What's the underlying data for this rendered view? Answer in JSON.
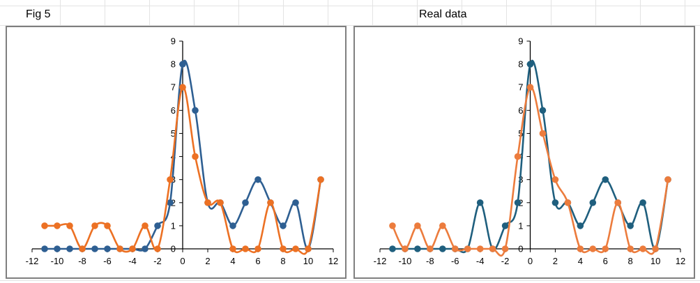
{
  "sheet": {
    "label_left": "Fig 5",
    "label_right": "Real data"
  },
  "chart_data": [
    {
      "type": "line",
      "title": "",
      "xlabel": "",
      "ylabel": "",
      "xlim": [
        -12,
        12
      ],
      "ylim": [
        0,
        9
      ],
      "x_ticks": [
        -12,
        -10,
        -8,
        -6,
        -4,
        -2,
        0,
        2,
        4,
        6,
        8,
        10,
        12
      ],
      "y_ticks": [
        0,
        1,
        2,
        3,
        4,
        5,
        6,
        7,
        8,
        9
      ],
      "smooth": true,
      "markers": true,
      "grid": false,
      "legend": "none",
      "series": [
        {
          "color": "#2e5f92",
          "x": [
            -11,
            -10,
            -9,
            -8,
            -7,
            -6,
            -5,
            -4,
            -3,
            -2,
            -1,
            0,
            1,
            2,
            3,
            4,
            5,
            6,
            7,
            8,
            9,
            10,
            11
          ],
          "y": [
            0,
            0,
            0,
            0,
            0,
            0,
            0,
            0,
            0,
            1,
            2,
            8,
            6,
            2,
            2,
            1,
            2,
            3,
            2,
            1,
            2,
            0,
            3
          ]
        },
        {
          "color": "#ec7124",
          "x": [
            -11,
            -10,
            -9,
            -8,
            -7,
            -6,
            -5,
            -4,
            -3,
            -2,
            -1,
            0,
            1,
            2,
            3,
            4,
            5,
            6,
            7,
            8,
            9,
            10,
            11
          ],
          "y": [
            1,
            1,
            1,
            0,
            1,
            1,
            0,
            0,
            1,
            0,
            3,
            7,
            4,
            2,
            2,
            0,
            0,
            0,
            2,
            0,
            0,
            0,
            3
          ]
        }
      ]
    },
    {
      "type": "line",
      "title": "",
      "xlabel": "",
      "ylabel": "",
      "xlim": [
        -12,
        12
      ],
      "ylim": [
        0,
        9
      ],
      "x_ticks": [
        -12,
        -10,
        -8,
        -6,
        -4,
        -2,
        0,
        2,
        4,
        6,
        8,
        10,
        12
      ],
      "y_ticks": [
        0,
        1,
        2,
        3,
        4,
        5,
        6,
        7,
        8,
        9
      ],
      "smooth": true,
      "markers": true,
      "grid": false,
      "legend": "none",
      "series": [
        {
          "color": "#1f5f7e",
          "x": [
            -11,
            -10,
            -9,
            -8,
            -7,
            -6,
            -5,
            -4,
            -3,
            -2,
            -1,
            0,
            1,
            2,
            3,
            4,
            5,
            6,
            7,
            8,
            9,
            10,
            11
          ],
          "y": [
            0,
            0,
            0,
            0,
            0,
            0,
            0,
            2,
            0,
            1,
            2,
            8,
            6,
            2,
            2,
            1,
            2,
            3,
            2,
            1,
            2,
            0,
            3
          ]
        },
        {
          "color": "#ec7c3d",
          "x": [
            -11,
            -10,
            -9,
            -8,
            -7,
            -6,
            -5,
            -4,
            -3,
            -2,
            -1,
            0,
            1,
            2,
            3,
            4,
            5,
            6,
            7,
            8,
            9,
            10,
            11
          ],
          "y": [
            1,
            0,
            1,
            0,
            1,
            0,
            0,
            0,
            0,
            0,
            4,
            7,
            5,
            3,
            2,
            0,
            0,
            0,
            2,
            0,
            0,
            0,
            3
          ]
        }
      ]
    }
  ]
}
